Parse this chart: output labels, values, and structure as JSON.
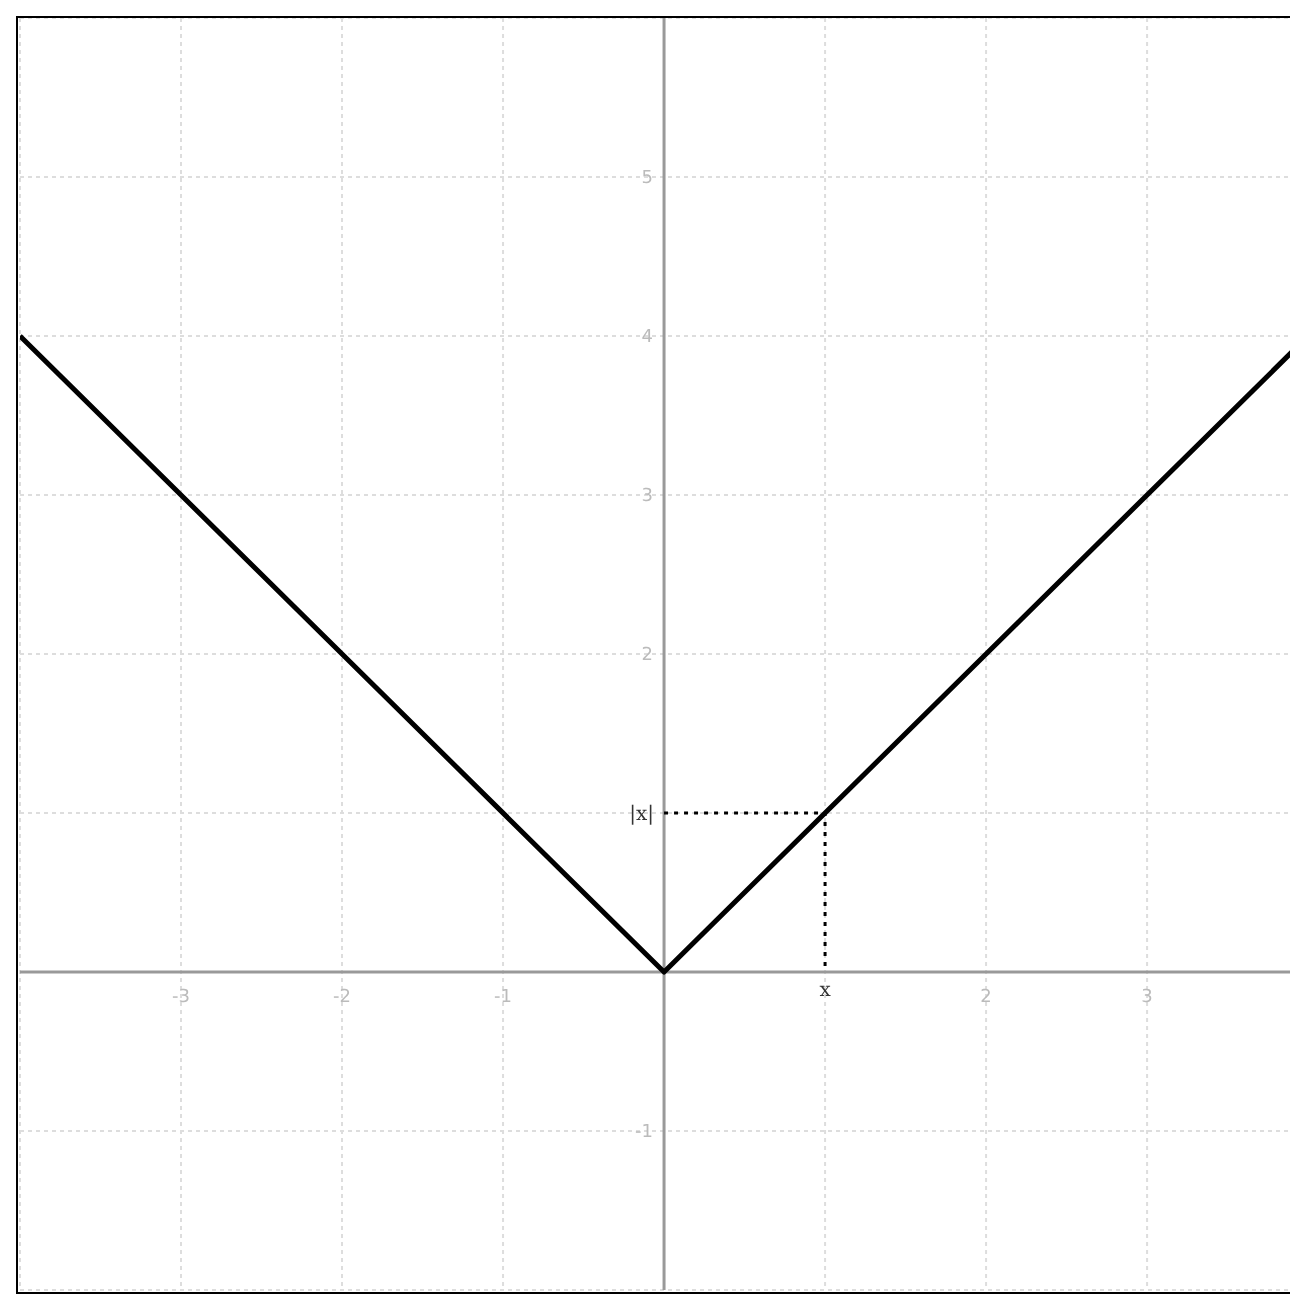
{
  "chart_data": {
    "type": "line",
    "series": [
      {
        "color": "#000000",
        "x": [
          -4,
          0,
          3.9
        ],
        "values": [
          4,
          0,
          3.9
        ]
      },
      {
        "color": "#000000",
        "x": [
          0,
          1,
          1
        ],
        "values": [
          1,
          1,
          0
        ],
        "line_style": "dotted"
      }
    ],
    "xlim": [
      -4,
      3.9
    ],
    "ylim": [
      -2,
      6
    ],
    "xticks": [
      -3,
      -2,
      -1,
      {
        "value": 1,
        "label": null
      },
      2,
      3
    ],
    "yticks": [
      -1,
      {
        "value": 1,
        "label": null
      },
      2,
      3,
      4,
      5
    ],
    "annotations": [
      {
        "text": "x",
        "x": 1,
        "y": 0
      },
      {
        "text": "|x|",
        "x": 0,
        "y": 1
      }
    ],
    "grid": true,
    "marker": "none",
    "line_style": "solid"
  }
}
